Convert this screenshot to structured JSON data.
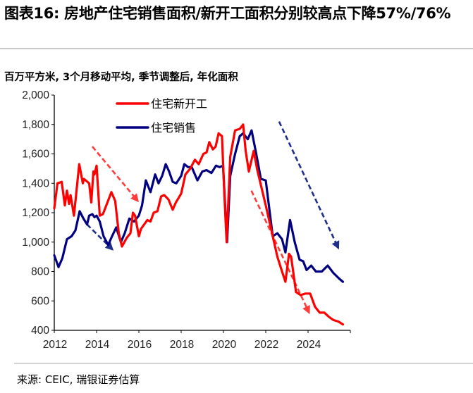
{
  "title": "图表16: 房地产住宅销售面积/新开工面积分别较高点下降57%/76%",
  "subtitle": "百万平方米, 3个月移动平均, 季节调整后, 年化面积",
  "source": "来源: CEIC, 瑞银证券估算",
  "chart_data": {
    "type": "line",
    "title": "",
    "ylabel": "百万平方米",
    "xlim": [
      2012,
      2026
    ],
    "ylim": [
      400,
      2000
    ],
    "yticks": [
      400,
      600,
      800,
      1000,
      1200,
      1400,
      1600,
      1800,
      2000
    ],
    "ytick_labels": [
      "400",
      "600",
      "800",
      "1,000",
      "1,200",
      "1,400",
      "1,600",
      "1,800",
      "2,000"
    ],
    "xticks": [
      2012,
      2014,
      2016,
      2018,
      2020,
      2022,
      2024
    ],
    "xtick_labels": [
      "2012",
      "2014",
      "2016",
      "2018",
      "2020",
      "2022",
      "2024"
    ],
    "grid": false,
    "legend_position": "top-left",
    "series": [
      {
        "name": "住宅新开工",
        "color": "#ff0000",
        "points": [
          [
            2012.0,
            1230
          ],
          [
            2012.15,
            1400
          ],
          [
            2012.35,
            1410
          ],
          [
            2012.5,
            1250
          ],
          [
            2012.6,
            1350
          ],
          [
            2012.7,
            1260
          ],
          [
            2012.77,
            1320
          ],
          [
            2012.93,
            1180
          ],
          [
            2013.18,
            1530
          ],
          [
            2013.35,
            1400
          ],
          [
            2013.4,
            1430
          ],
          [
            2013.65,
            1400
          ],
          [
            2013.75,
            1270
          ],
          [
            2013.85,
            1480
          ],
          [
            2013.9,
            1460
          ],
          [
            2014.0,
            1520
          ],
          [
            2014.15,
            1180
          ],
          [
            2014.3,
            1190
          ],
          [
            2014.7,
            1340
          ],
          [
            2014.88,
            1280
          ],
          [
            2015.05,
            1060
          ],
          [
            2015.2,
            970
          ],
          [
            2015.43,
            1030
          ],
          [
            2015.6,
            1060
          ],
          [
            2015.72,
            1200
          ],
          [
            2015.82,
            1180
          ],
          [
            2016.0,
            1040
          ],
          [
            2016.1,
            1090
          ],
          [
            2016.4,
            1150
          ],
          [
            2016.55,
            1140
          ],
          [
            2016.7,
            1200
          ],
          [
            2016.88,
            1210
          ],
          [
            2017.05,
            1310
          ],
          [
            2017.2,
            1320
          ],
          [
            2017.4,
            1290
          ],
          [
            2017.6,
            1220
          ],
          [
            2017.75,
            1270
          ],
          [
            2018.0,
            1330
          ],
          [
            2018.2,
            1460
          ],
          [
            2018.43,
            1500
          ],
          [
            2018.65,
            1560
          ],
          [
            2018.83,
            1530
          ],
          [
            2019.05,
            1600
          ],
          [
            2019.2,
            1610
          ],
          [
            2019.33,
            1680
          ],
          [
            2019.5,
            1630
          ],
          [
            2019.63,
            1650
          ],
          [
            2019.77,
            1740
          ],
          [
            2019.93,
            1720
          ],
          [
            2020.05,
            1300
          ],
          [
            2020.15,
            1000
          ],
          [
            2020.32,
            1580
          ],
          [
            2020.55,
            1760
          ],
          [
            2020.77,
            1770
          ],
          [
            2020.93,
            1800
          ],
          [
            2021.05,
            1620
          ],
          [
            2021.2,
            1480
          ],
          [
            2021.43,
            1620
          ],
          [
            2021.6,
            1490
          ],
          [
            2022.0,
            1250
          ],
          [
            2022.33,
            1040
          ],
          [
            2022.55,
            900
          ],
          [
            2022.77,
            800
          ],
          [
            2022.93,
            730
          ],
          [
            2023.1,
            920
          ],
          [
            2023.2,
            900
          ],
          [
            2023.43,
            660
          ],
          [
            2023.65,
            640
          ],
          [
            2023.88,
            650
          ],
          [
            2024.1,
            650
          ],
          [
            2024.33,
            560
          ],
          [
            2024.55,
            520
          ],
          [
            2024.77,
            520
          ],
          [
            2025.0,
            490
          ],
          [
            2025.2,
            470
          ],
          [
            2025.43,
            460
          ],
          [
            2025.65,
            440
          ]
        ]
      },
      {
        "name": "住宅销售",
        "color": "#000080",
        "points": [
          [
            2012.0,
            910
          ],
          [
            2012.2,
            830
          ],
          [
            2012.38,
            890
          ],
          [
            2012.6,
            1020
          ],
          [
            2012.82,
            1040
          ],
          [
            2013.0,
            1080
          ],
          [
            2013.2,
            1210
          ],
          [
            2013.38,
            1160
          ],
          [
            2013.55,
            1120
          ],
          [
            2013.65,
            1180
          ],
          [
            2013.8,
            1190
          ],
          [
            2013.9,
            1170
          ],
          [
            2014.0,
            1180
          ],
          [
            2014.15,
            1140
          ],
          [
            2014.33,
            1040
          ],
          [
            2014.55,
            980
          ],
          [
            2014.7,
            1030
          ],
          [
            2014.93,
            1100
          ],
          [
            2015.15,
            1000
          ],
          [
            2015.33,
            1060
          ],
          [
            2015.55,
            1160
          ],
          [
            2015.77,
            1140
          ],
          [
            2016.0,
            1180
          ],
          [
            2016.15,
            1250
          ],
          [
            2016.33,
            1420
          ],
          [
            2016.55,
            1340
          ],
          [
            2016.77,
            1460
          ],
          [
            2016.93,
            1400
          ],
          [
            2017.1,
            1450
          ],
          [
            2017.27,
            1530
          ],
          [
            2017.43,
            1480
          ],
          [
            2017.6,
            1410
          ],
          [
            2017.77,
            1400
          ],
          [
            2018.0,
            1450
          ],
          [
            2018.15,
            1530
          ],
          [
            2018.33,
            1510
          ],
          [
            2018.5,
            1510
          ],
          [
            2018.77,
            1420
          ],
          [
            2019.0,
            1480
          ],
          [
            2019.2,
            1490
          ],
          [
            2019.43,
            1470
          ],
          [
            2019.65,
            1520
          ],
          [
            2019.82,
            1510
          ],
          [
            2019.98,
            1520
          ],
          [
            2020.17,
            1000
          ],
          [
            2020.32,
            1450
          ],
          [
            2020.55,
            1600
          ],
          [
            2020.77,
            1720
          ],
          [
            2020.93,
            1740
          ],
          [
            2021.15,
            1700
          ],
          [
            2021.33,
            1760
          ],
          [
            2021.55,
            1600
          ],
          [
            2021.77,
            1430
          ],
          [
            2022.0,
            1420
          ],
          [
            2022.33,
            1040
          ],
          [
            2022.55,
            1060
          ],
          [
            2022.77,
            1020
          ],
          [
            2022.93,
            930
          ],
          [
            2023.15,
            1150
          ],
          [
            2023.37,
            1000
          ],
          [
            2023.6,
            880
          ],
          [
            2023.77,
            870
          ],
          [
            2023.93,
            810
          ],
          [
            2024.15,
            840
          ],
          [
            2024.37,
            800
          ],
          [
            2024.65,
            800
          ],
          [
            2024.93,
            840
          ],
          [
            2025.2,
            790
          ],
          [
            2025.48,
            750
          ],
          [
            2025.65,
            730
          ]
        ]
      }
    ],
    "annotations": [
      {
        "type": "dashed-arrow",
        "color": "#ff3b3b",
        "from": [
          2013.8,
          1650
        ],
        "to": [
          2015.95,
          1280
        ]
      },
      {
        "type": "dashed-arrow",
        "color": "#1f2f8a",
        "from": [
          2013.55,
          1120
        ],
        "to": [
          2014.75,
          950
        ]
      },
      {
        "type": "dashed-arrow",
        "color": "#ff3b3b",
        "from": [
          2021.32,
          1350
        ],
        "to": [
          2024.05,
          520
        ]
      },
      {
        "type": "dashed-arrow",
        "color": "#1f2f8a",
        "from": [
          2022.63,
          1820
        ],
        "to": [
          2025.43,
          960
        ]
      }
    ]
  }
}
